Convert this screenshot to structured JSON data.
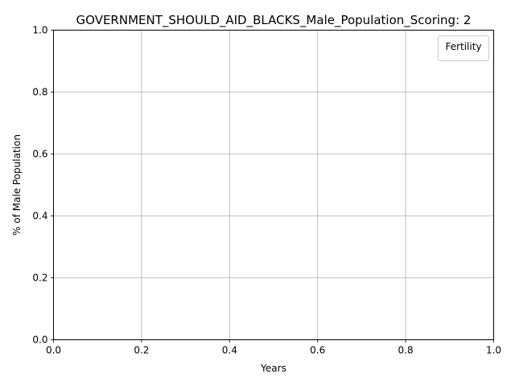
{
  "chart_data": {
    "type": "line",
    "title": "GOVERNMENT_SHOULD_AID_BLACKS_Male_Population_Scoring: 2",
    "xlabel": "Years",
    "ylabel": "% of Male Population",
    "xlim": [
      0.0,
      1.0
    ],
    "ylim": [
      0.0,
      1.0
    ],
    "xticks": [
      "0.0",
      "0.2",
      "0.4",
      "0.6",
      "0.8",
      "1.0"
    ],
    "yticks": [
      "0.0",
      "0.2",
      "0.4",
      "0.6",
      "0.8",
      "1.0"
    ],
    "grid": true,
    "legend": {
      "title": "Fertility",
      "placement": "top-right",
      "entries": []
    },
    "series": []
  },
  "colors": {
    "grid": "#b0b0b0",
    "axis": "#000000",
    "background": "#ffffff",
    "legend_border": "#cccccc"
  }
}
